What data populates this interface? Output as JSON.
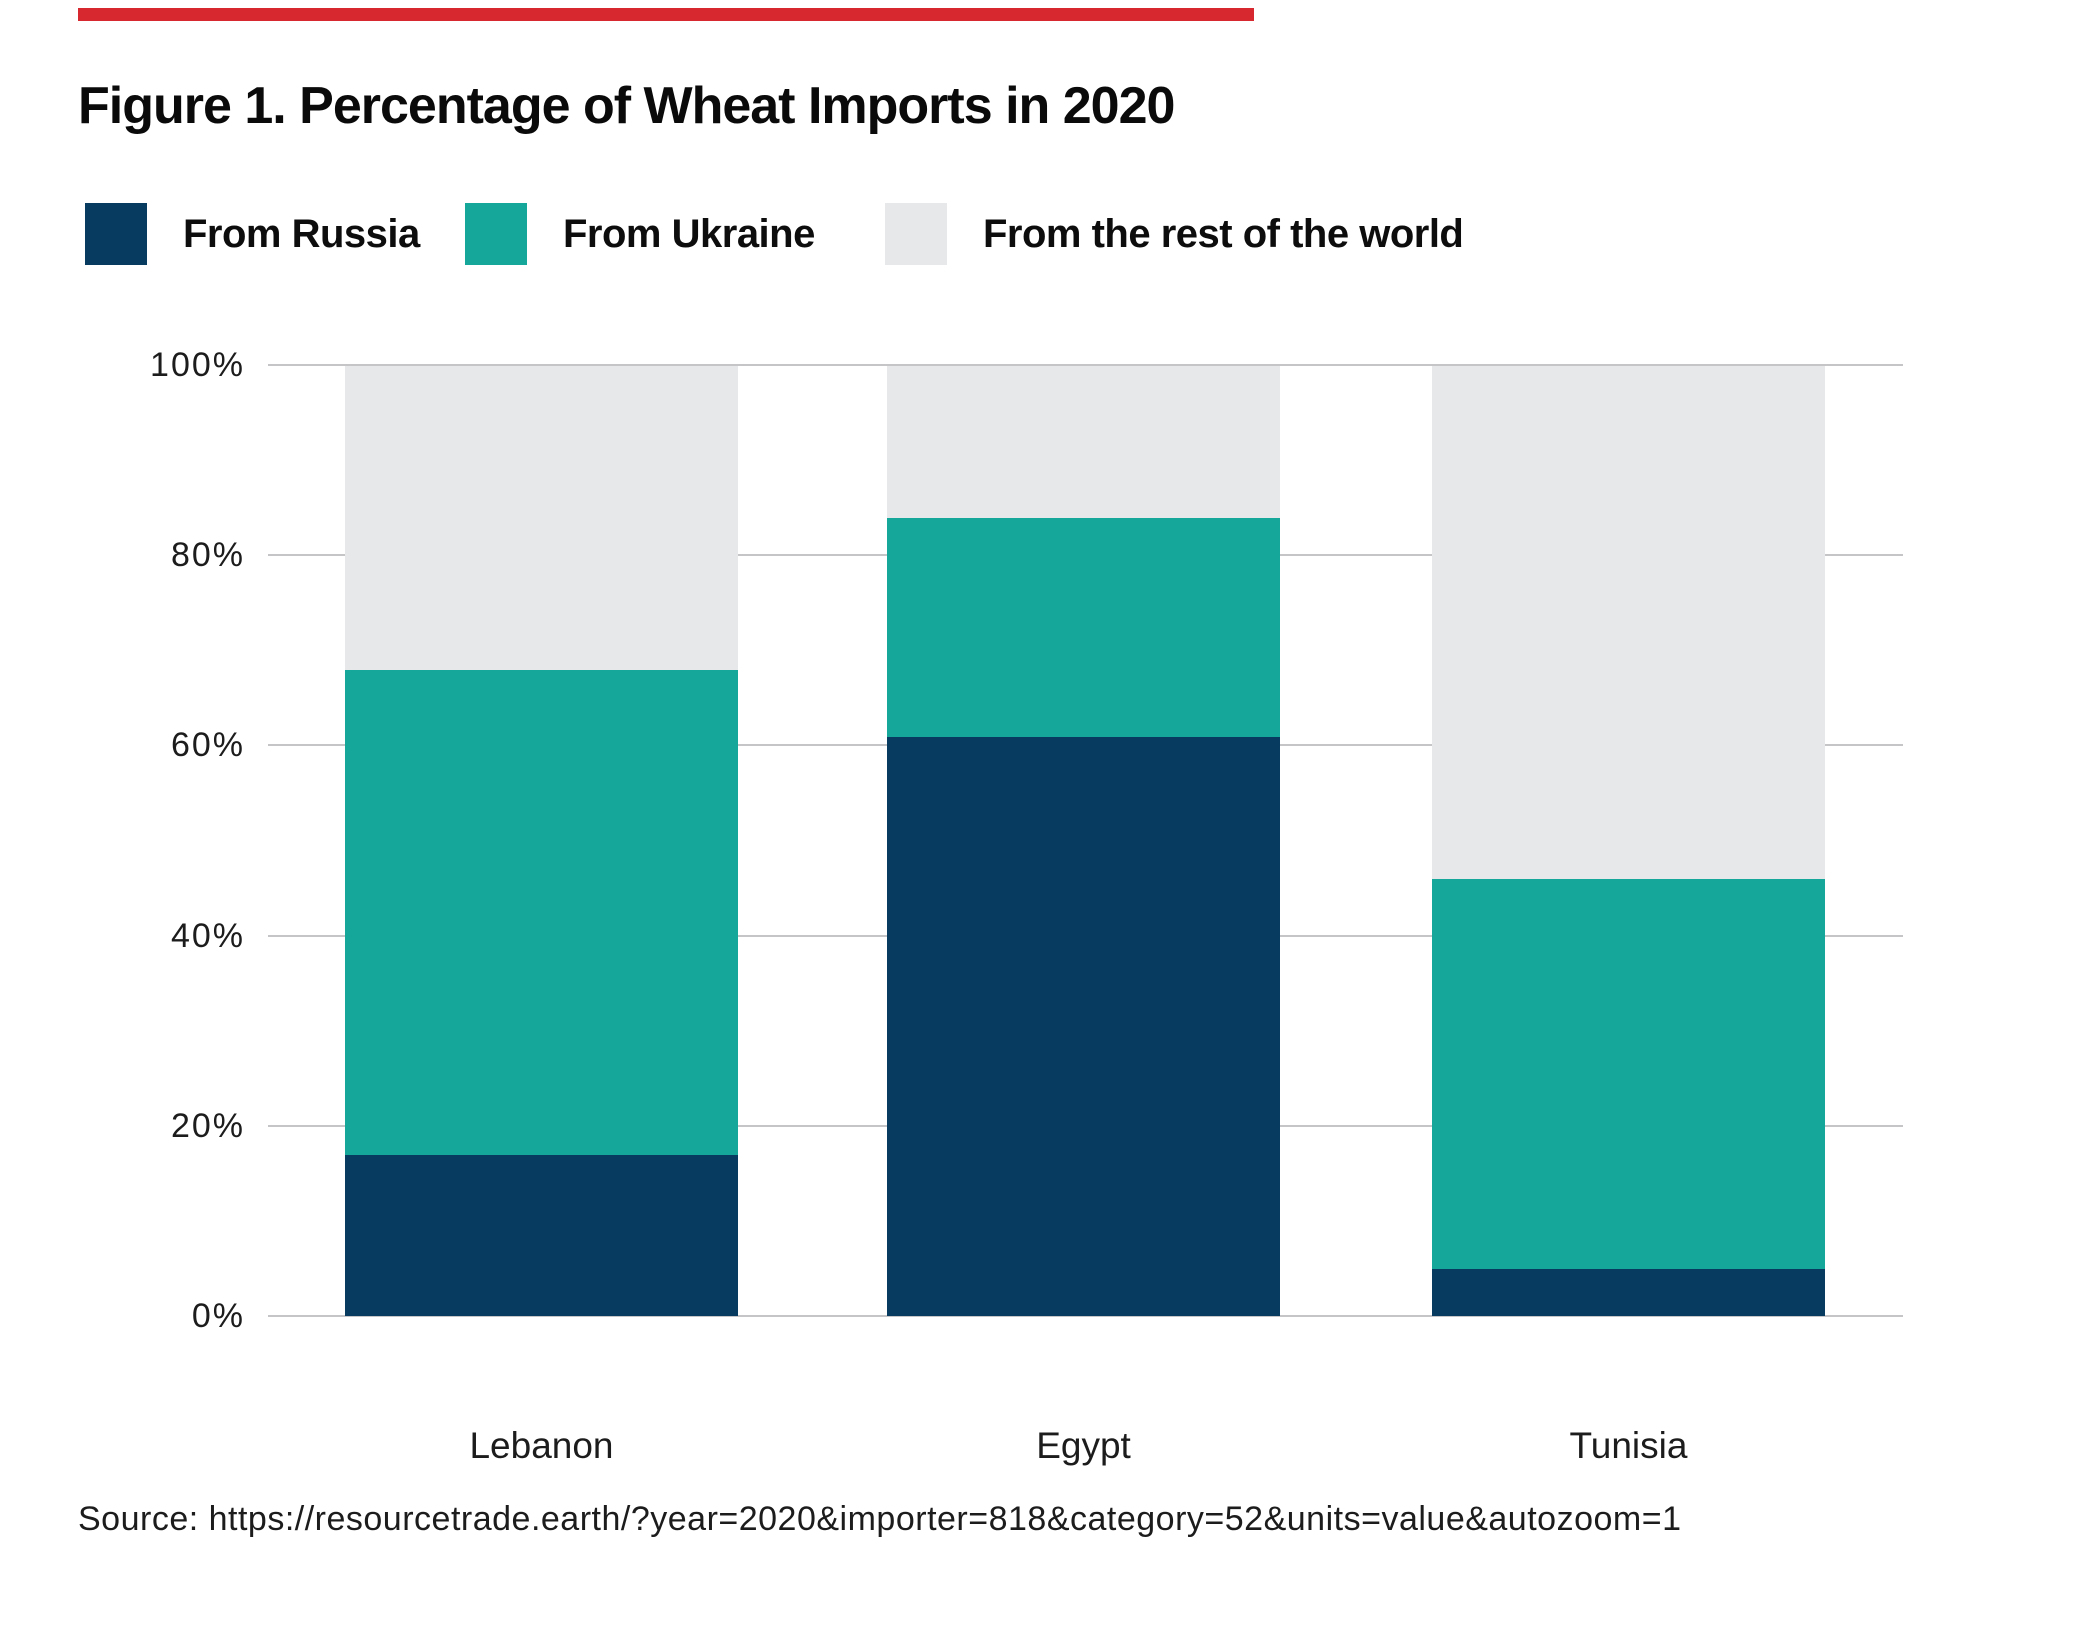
{
  "figure": {
    "title": "Figure 1. Percentage of Wheat Imports in 2020",
    "source": "Source: https://resourcetrade.earth/?year=2020&importer=818&category=52&units=value&autozoom=1"
  },
  "accent_bar_color": "#D7282F",
  "legend": {
    "items": [
      {
        "label": "From Russia",
        "color": "#073C60"
      },
      {
        "label": "From Ukraine",
        "color": "#16A79B"
      },
      {
        "label": "From the rest of the world",
        "color": "#E7E8E9"
      }
    ]
  },
  "chart_data": {
    "type": "bar",
    "stacked": true,
    "title": "Figure 1. Percentage of Wheat Imports in 2020",
    "categories": [
      "Lebanon",
      "Egypt",
      "Tunisia"
    ],
    "series": [
      {
        "name": "From Russia",
        "color": "#073C60",
        "values": [
          17,
          61,
          5
        ]
      },
      {
        "name": "From Ukraine",
        "color": "#16A79B",
        "values": [
          51,
          23,
          41
        ]
      },
      {
        "name": "From the rest of the world",
        "color": "#E7E8E9",
        "values": [
          32,
          16,
          54
        ]
      }
    ],
    "unit": "%",
    "ylim": [
      0,
      100
    ],
    "y_ticks": [
      "100%",
      "80%",
      "60%",
      "40%",
      "20%",
      "0%"
    ],
    "y_tick_values": [
      100,
      80,
      60,
      40,
      20,
      0
    ],
    "grid": true,
    "gridline_color": "#C5C5C7",
    "legend_position": "top"
  }
}
